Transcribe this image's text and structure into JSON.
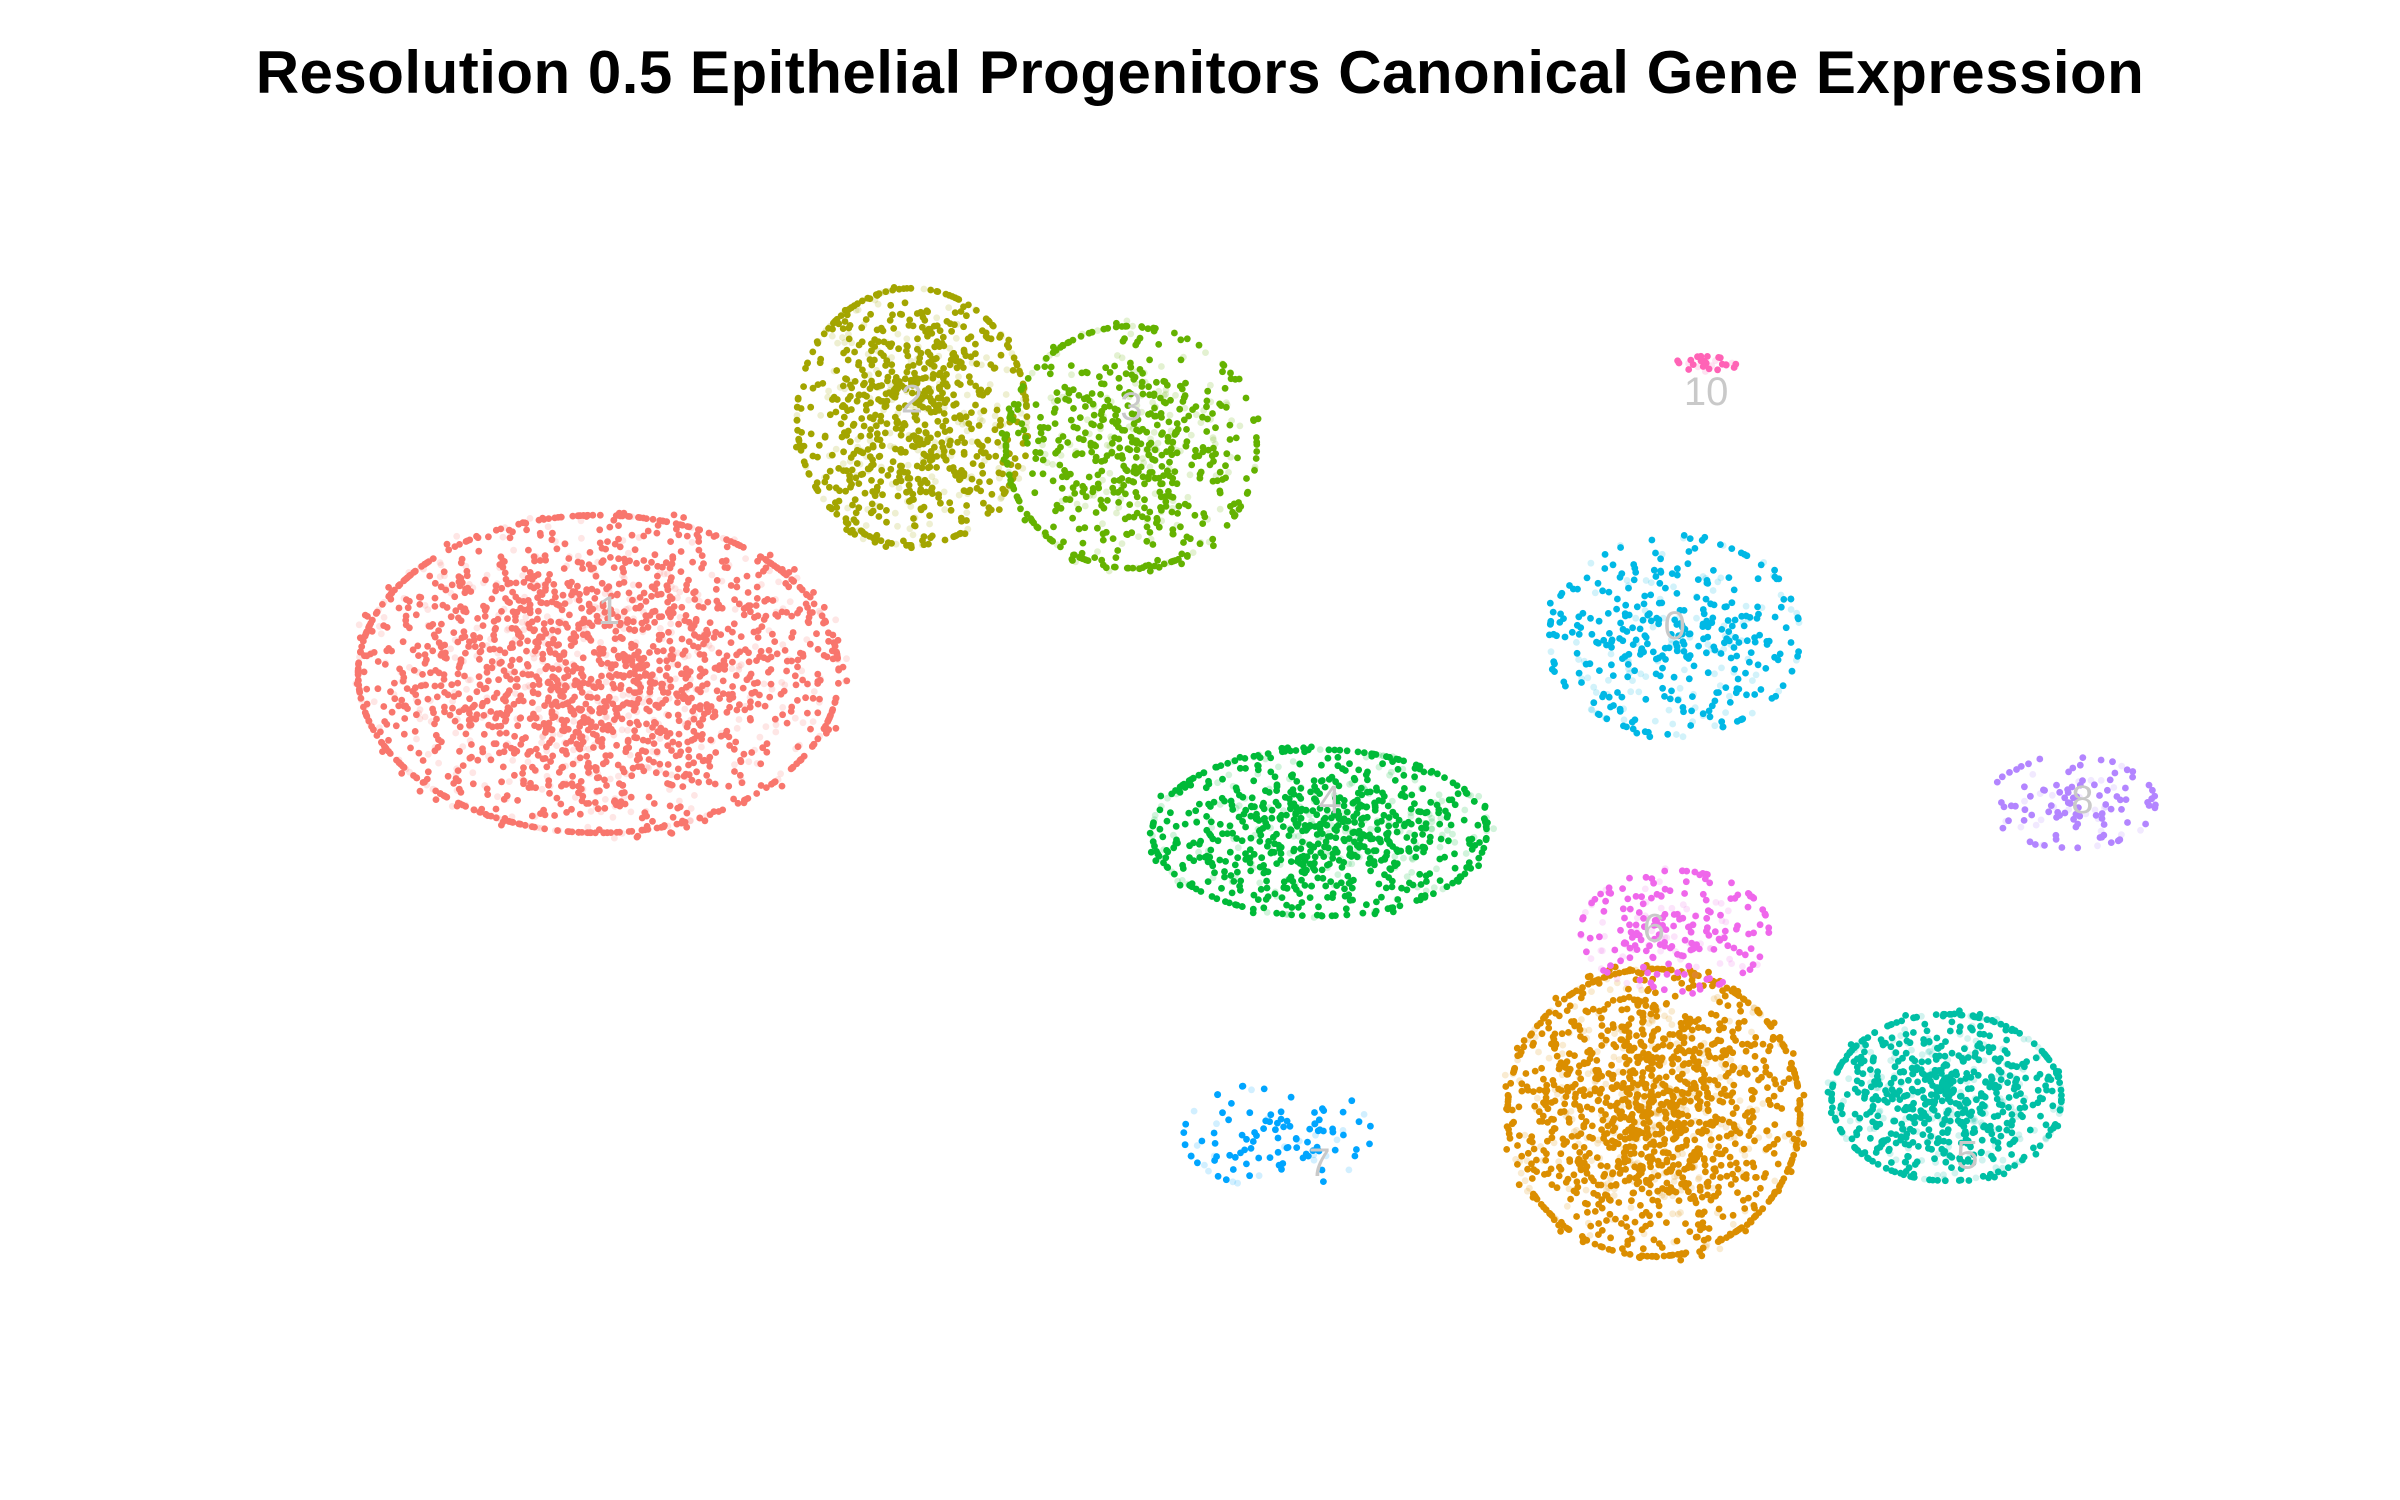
{
  "chart_data": {
    "type": "scatter",
    "title": "Resolution 0.5 Epithelial Progenitors Canonical Gene Expression",
    "xlabel": "",
    "ylabel": "",
    "xlim": [
      -10,
      10
    ],
    "ylim": [
      -8,
      8
    ],
    "grid": false,
    "legend": "none",
    "clusters": [
      {
        "label": "0",
        "color": "#00B8E5",
        "center": [
          4.4,
          2.1
        ],
        "spread": [
          1.2,
          1.3
        ],
        "count": 420
      },
      {
        "label": "1",
        "color": "#F8766D",
        "center": [
          -5.9,
          1.6
        ],
        "spread": [
          2.3,
          2.1
        ],
        "count": 2200
      },
      {
        "label": "2",
        "color": "#A3A500",
        "center": [
          -2.9,
          5.0
        ],
        "spread": [
          1.1,
          1.7
        ],
        "count": 900
      },
      {
        "label": "3",
        "color": "#64B200",
        "center": [
          -0.8,
          4.6
        ],
        "spread": [
          1.2,
          1.6
        ],
        "count": 700
      },
      {
        "label": "4",
        "color": "#00BA38",
        "center": [
          1.0,
          -0.5
        ],
        "spread": [
          1.6,
          1.1
        ],
        "count": 900
      },
      {
        "label": "5",
        "color": "#00BFA5",
        "center": [
          7.0,
          -4.0
        ],
        "spread": [
          1.1,
          1.1
        ],
        "count": 800
      },
      {
        "label": "6",
        "color": "#DB8E00",
        "center": [
          4.2,
          -4.2
        ],
        "spread": [
          1.4,
          1.9
        ],
        "count": 1600
      },
      {
        "label": "7",
        "color": "#00A5FF",
        "center": [
          0.6,
          -4.5
        ],
        "spread": [
          0.9,
          0.7
        ],
        "count": 110
      },
      {
        "label": "8",
        "color": "#B385FF",
        "center": [
          8.2,
          -0.1
        ],
        "spread": [
          0.8,
          0.6
        ],
        "count": 120
      },
      {
        "label": "9",
        "color": "#EF67EB",
        "center": [
          4.4,
          -1.8
        ],
        "spread": [
          0.9,
          0.8
        ],
        "count": 240
      },
      {
        "label": "10",
        "color": "#FF63B6",
        "center": [
          4.7,
          5.7
        ],
        "spread": [
          0.3,
          0.1
        ],
        "count": 30
      }
    ],
    "label_positions": [
      {
        "label": "0",
        "x": 4.4,
        "y": 2.2
      },
      {
        "label": "1",
        "x": -5.8,
        "y": 2.4
      },
      {
        "label": "2",
        "x": -2.9,
        "y": 5.2
      },
      {
        "label": "3",
        "x": -0.8,
        "y": 5.1
      },
      {
        "label": "4",
        "x": 1.1,
        "y": -0.1
      },
      {
        "label": "5",
        "x": 7.2,
        "y": -4.8
      },
      {
        "label": "6",
        "x": 4.2,
        "y": -1.8
      },
      {
        "label": "7",
        "x": 1.0,
        "y": -4.9
      },
      {
        "label": "8",
        "x": 8.3,
        "y": -0.1
      },
      {
        "label": "10",
        "x": 4.7,
        "y": 5.3
      }
    ]
  }
}
